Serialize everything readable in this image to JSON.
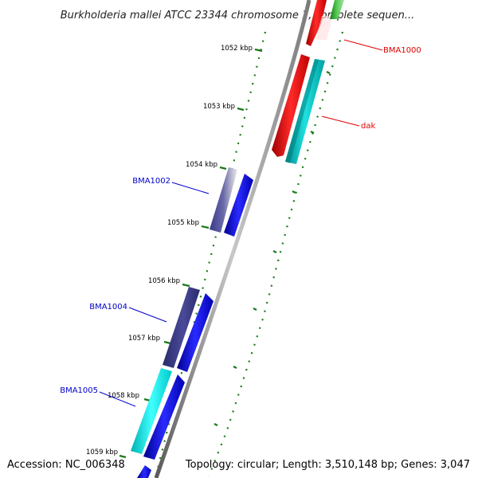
{
  "map": {
    "title": "Burkholderia mallei ATCC 23344 chromosome 1, complete sequen...",
    "accession": "Accession: NC_006348",
    "topology": "Topology: circular; Length: 3,510,148 bp; Genes: 3,047",
    "ticks": [
      {
        "label": "1052 kbp"
      },
      {
        "label": "1053 kbp"
      },
      {
        "label": "1054 kbp"
      },
      {
        "label": "1055 kbp"
      },
      {
        "label": "1056 kbp"
      },
      {
        "label": "1057 kbp"
      },
      {
        "label": "1058 kbp"
      },
      {
        "label": "1059 kbp"
      }
    ],
    "gene_labels": [
      {
        "text": "BMA1000",
        "color": "#e00000"
      },
      {
        "text": "dak",
        "color": "#e00000"
      },
      {
        "text": "BMA1002",
        "color": "#0000cc"
      },
      {
        "text": "BMA1004",
        "color": "#0000cc"
      },
      {
        "text": "BMA1005",
        "color": "#0000cc"
      }
    ],
    "colors": {
      "forward_cds": "#ff0000",
      "forward_feature": "#00c8c8",
      "reverse_cds": "#0000ff",
      "reverse_feature_dark": "#3a3a8a",
      "reverse_feature_cyan": "#00e0e0",
      "rna": "#33aa33",
      "tick": "#1a7a1a",
      "backbone": "#8a8a8a"
    }
  }
}
